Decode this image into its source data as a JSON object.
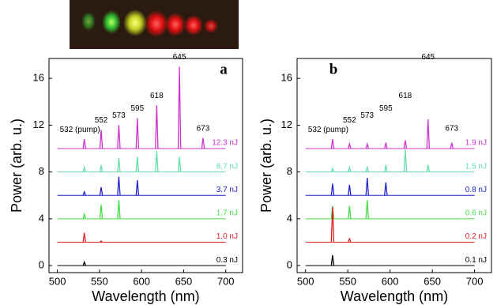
{
  "chart_data": [
    {
      "type": "spectrum",
      "panel_label": "a",
      "xlabel": "Wavelength (nm)",
      "ylabel": "Power (arb. u.)",
      "xlim": [
        490,
        720
      ],
      "ylim": [
        -0.6,
        17.7
      ],
      "xticks": [
        500,
        550,
        600,
        650,
        700
      ],
      "yticks": [
        0,
        4,
        8,
        12,
        16
      ],
      "annotations": [
        {
          "value": 532,
          "label": "532 (pump)"
        },
        552,
        573,
        595,
        618,
        645,
        673
      ],
      "series": [
        {
          "name": "12.3 nJ",
          "color": "#cc33cc",
          "baseline": 10,
          "x": [
            532,
            552,
            573,
            595,
            618,
            645,
            673
          ],
          "values": [
            10.8,
            11.6,
            12.0,
            12.6,
            13.7,
            17.0,
            10.9
          ]
        },
        {
          "name": "8.7 nJ",
          "color": "#66ddaa",
          "baseline": 8,
          "x": [
            532,
            552,
            573,
            595,
            618,
            645
          ],
          "values": [
            8.4,
            8.6,
            9.2,
            9.3,
            9.8,
            9.3
          ]
        },
        {
          "name": "3.7 nJ",
          "color": "#2222cc",
          "baseline": 6,
          "x": [
            532,
            552,
            573,
            595
          ],
          "values": [
            6.3,
            6.7,
            7.6,
            7.3
          ]
        },
        {
          "name": "1.7 nJ",
          "color": "#44dd44",
          "baseline": 4,
          "x": [
            532,
            552,
            573
          ],
          "values": [
            4.4,
            5.2,
            5.6
          ]
        },
        {
          "name": "1.0 nJ",
          "color": "#dd2222",
          "baseline": 2,
          "x": [
            532,
            552
          ],
          "values": [
            2.8,
            2.1
          ]
        },
        {
          "name": "0.3 nJ",
          "color": "#000000",
          "baseline": 0,
          "x": [
            532
          ],
          "values": [
            0.3
          ]
        }
      ]
    },
    {
      "type": "spectrum",
      "panel_label": "b",
      "xlabel": "Wavelength (nm)",
      "ylabel": "Power (arb. u.)",
      "xlim": [
        490,
        720
      ],
      "ylim": [
        -0.6,
        17.7
      ],
      "xticks": [
        500,
        550,
        600,
        650,
        700
      ],
      "yticks": [
        0,
        4,
        8,
        12,
        16
      ],
      "annotations": [
        {
          "value": 532,
          "label": "532 (pump)"
        },
        552,
        573,
        595,
        618,
        645,
        673
      ],
      "series": [
        {
          "name": "1.9 nJ",
          "color": "#cc33cc",
          "baseline": 10,
          "x": [
            532,
            552,
            573,
            595,
            618,
            645,
            673
          ],
          "values": [
            10.8,
            10.4,
            10.4,
            10.5,
            10.7,
            12.5,
            10.5
          ]
        },
        {
          "name": "1.5 nJ",
          "color": "#66ddaa",
          "baseline": 8,
          "x": [
            532,
            552,
            573,
            595,
            618,
            645
          ],
          "values": [
            8.3,
            8.4,
            8.4,
            8.6,
            9.9,
            8.6
          ]
        },
        {
          "name": "0.8 nJ",
          "color": "#2222cc",
          "baseline": 6,
          "x": [
            532,
            552,
            573,
            595
          ],
          "values": [
            7.0,
            6.9,
            7.5,
            7.1
          ]
        },
        {
          "name": "0.6 nJ",
          "color": "#44dd44",
          "baseline": 4,
          "x": [
            532,
            552,
            573
          ],
          "values": [
            5.1,
            5.1,
            5.6
          ]
        },
        {
          "name": "0.2 nJ",
          "color": "#dd2222",
          "baseline": 2,
          "x": [
            532,
            552
          ],
          "values": [
            5.0,
            2.3
          ]
        },
        {
          "name": "0.1 nJ",
          "color": "#000000",
          "baseline": 0,
          "x": [
            532
          ],
          "values": [
            0.9
          ]
        }
      ]
    }
  ]
}
